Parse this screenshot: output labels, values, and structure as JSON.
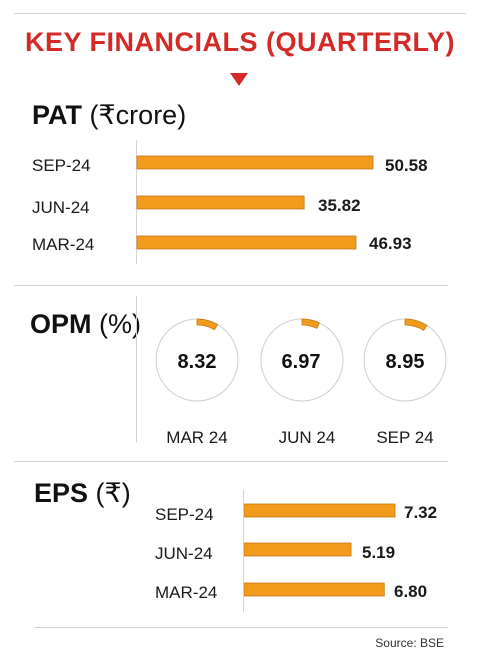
{
  "title": "KEY FINANCIALS (QUARTERLY)",
  "colors": {
    "accent": "#d32a27",
    "bar": "#f29a1c",
    "bar_outline": "#c77714"
  },
  "pat": {
    "title_bold": "PAT",
    "title_unit": "(₹crore)",
    "rows": [
      {
        "label": "SEP-24",
        "value_text": "50.58"
      },
      {
        "label": "JUN-24",
        "value_text": "35.82"
      },
      {
        "label": "MAR-24",
        "value_text": "46.93"
      }
    ]
  },
  "opm": {
    "title_bold": "OPM",
    "title_unit": "(%)",
    "items": [
      {
        "label": "MAR 24",
        "value_text": "8.32"
      },
      {
        "label": "JUN 24",
        "value_text": "6.97"
      },
      {
        "label": "SEP 24",
        "value_text": "8.95"
      }
    ]
  },
  "eps": {
    "title_bold": "EPS",
    "title_unit": "(₹)",
    "rows": [
      {
        "label": "SEP-24",
        "value_text": "7.32"
      },
      {
        "label": "JUN-24",
        "value_text": "5.19"
      },
      {
        "label": "MAR-24",
        "value_text": "6.80"
      }
    ]
  },
  "source": "Source: BSE",
  "chart_data": [
    {
      "type": "bar",
      "title": "PAT (₹crore)",
      "categories": [
        "SEP-24",
        "JUN-24",
        "MAR-24"
      ],
      "values": [
        50.58,
        35.82,
        46.93
      ],
      "orientation": "horizontal",
      "xlim": [
        0,
        55
      ]
    },
    {
      "type": "pie",
      "title": "OPM (%)",
      "categories": [
        "MAR 24",
        "JUN 24",
        "SEP 24"
      ],
      "values": [
        8.32,
        6.97,
        8.95
      ],
      "scale_max": 100
    },
    {
      "type": "bar",
      "title": "EPS (₹)",
      "categories": [
        "SEP-24",
        "JUN-24",
        "MAR-24"
      ],
      "values": [
        7.32,
        5.19,
        6.8
      ],
      "orientation": "horizontal",
      "xlim": [
        0,
        8.1
      ]
    }
  ]
}
